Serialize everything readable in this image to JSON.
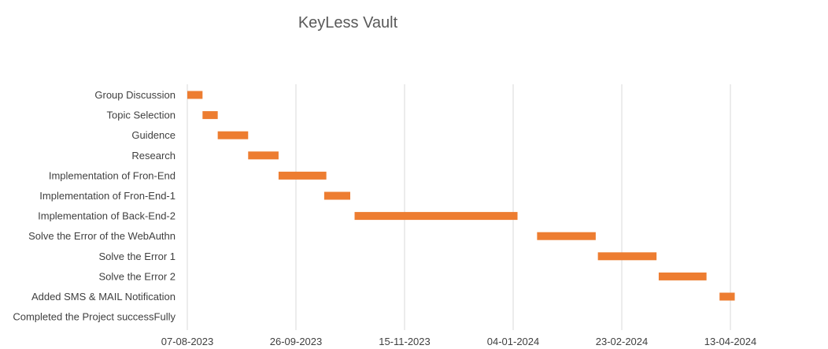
{
  "chart_data": {
    "type": "bar",
    "subtype": "gantt",
    "title": "KeyLess Vault",
    "xlabel": "",
    "ylabel": "",
    "bar_color": "#ED7D31",
    "grid": "vertical",
    "legend": "none",
    "x_ticks": [
      "07-08-2023",
      "26-09-2023",
      "15-11-2023",
      "04-01-2024",
      "23-02-2024",
      "13-04-2024"
    ],
    "tasks": [
      {
        "name": "Group Discussion",
        "start": "2023-08-07",
        "end": "2023-08-14"
      },
      {
        "name": "Topic Selection",
        "start": "2023-08-14",
        "end": "2023-08-21"
      },
      {
        "name": "Guidence",
        "start": "2023-08-21",
        "end": "2023-09-04"
      },
      {
        "name": "Research",
        "start": "2023-09-04",
        "end": "2023-09-18"
      },
      {
        "name": "Implementation of Fron-End",
        "start": "2023-09-18",
        "end": "2023-10-10"
      },
      {
        "name": "Implementation of Fron-End-1",
        "start": "2023-10-09",
        "end": "2023-10-21"
      },
      {
        "name": "Implementation of Back-End-2",
        "start": "2023-10-23",
        "end": "2024-01-06"
      },
      {
        "name": "Solve the Error of the WebAuthn",
        "start": "2024-01-15",
        "end": "2024-02-11"
      },
      {
        "name": "Solve the Error 1",
        "start": "2024-02-12",
        "end": "2024-03-10"
      },
      {
        "name": "Solve the Error 2",
        "start": "2024-03-11",
        "end": "2024-04-02"
      },
      {
        "name": "Added SMS & MAIL Notification",
        "start": "2024-04-08",
        "end": "2024-04-15"
      },
      {
        "name": "Completed the Project successFully",
        "start": null,
        "end": null
      }
    ]
  }
}
